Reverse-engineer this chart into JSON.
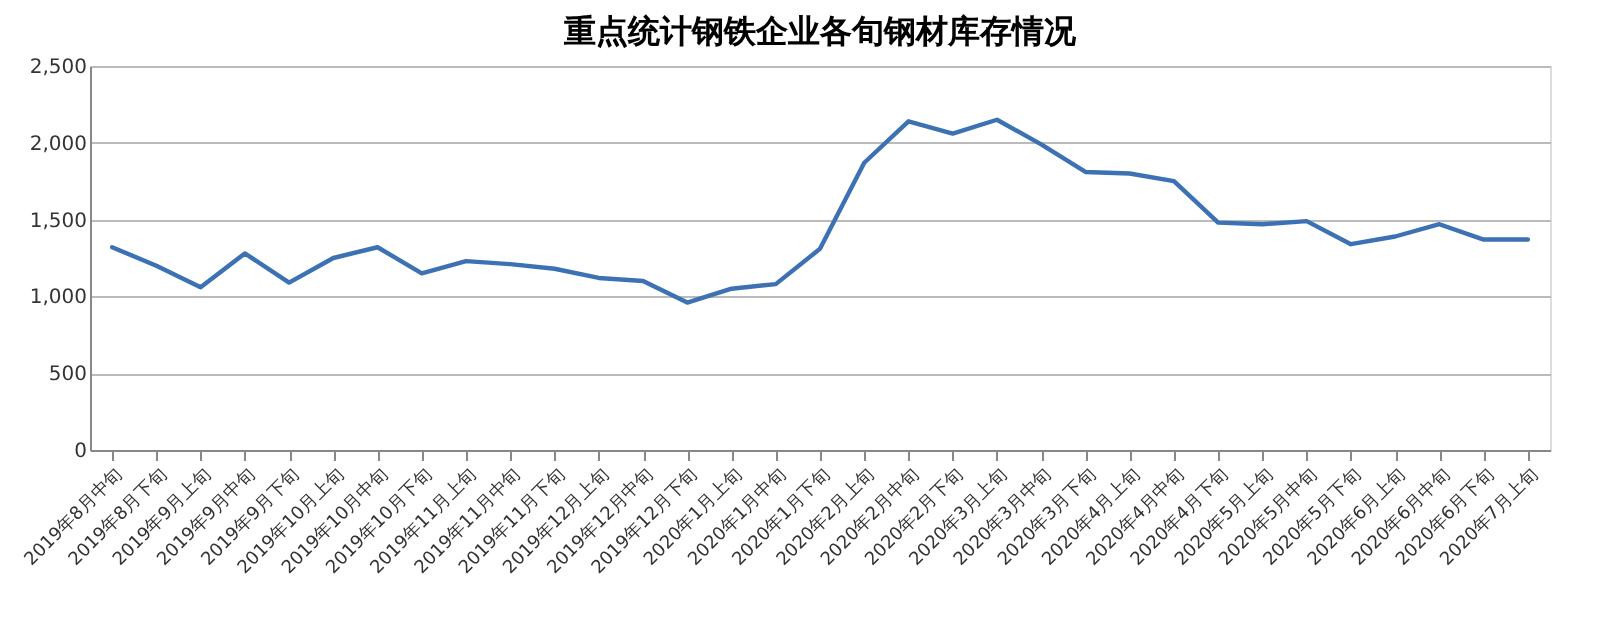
{
  "chart_data": {
    "type": "line",
    "title": "重点统计钢铁企业各旬钢材库存情况",
    "categories": [
      "2019年8月中旬",
      "2019年8月下旬",
      "2019年9月上旬",
      "2019年9月中旬",
      "2019年9月下旬",
      "2019年10月上旬",
      "2019年10月中旬",
      "2019年10月下旬",
      "2019年11月上旬",
      "2019年11月中旬",
      "2019年11月下旬",
      "2019年12月上旬",
      "2019年12月中旬",
      "2019年12月下旬",
      "2020年1月上旬",
      "2020年1月中旬",
      "2020年1月下旬",
      "2020年2月上旬",
      "2020年2月中旬",
      "2020年2月下旬",
      "2020年3月上旬",
      "2020年3月中旬",
      "2020年3月下旬",
      "2020年4月上旬",
      "2020年4月中旬",
      "2020年4月下旬",
      "2020年5月上旬",
      "2020年5月中旬",
      "2020年5月下旬",
      "2020年6月上旬",
      "2020年6月中旬",
      "2020年6月下旬",
      "2020年7月上旬"
    ],
    "series": [
      {
        "color": "#3c72b4",
        "values": [
          1320,
          1200,
          1060,
          1280,
          1090,
          1250,
          1320,
          1150,
          1230,
          1210,
          1180,
          1120,
          1100,
          960,
          1050,
          1080,
          1310,
          1870,
          2140,
          2060,
          2150,
          1990,
          1810,
          1800,
          1750,
          1480,
          1470,
          1490,
          1340,
          1390,
          1470,
          1370,
          1370
        ]
      }
    ],
    "ylim": [
      0,
      2500
    ],
    "yticks": [
      0,
      500,
      {
        "value": 1000,
        "label": "1,000"
      },
      {
        "value": 1500,
        "label": "1,500"
      },
      {
        "value": 2000,
        "label": "2,000"
      },
      {
        "value": 2500,
        "label": "2,500"
      }
    ],
    "grid": "y",
    "legend": false,
    "marker": "none",
    "line_style": "solid"
  }
}
